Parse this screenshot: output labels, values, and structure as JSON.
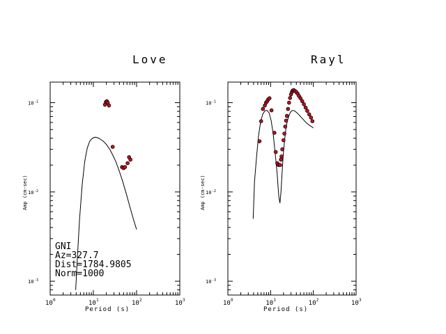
{
  "page": {
    "background": "#ffffff"
  },
  "chart_data": [
    {
      "type": "line",
      "title": "Love",
      "xlabel": "Period (s)",
      "ylabel": "Amp (cm-sec)",
      "xscale": "log",
      "yscale": "log",
      "xlim": [
        1,
        1000
      ],
      "ylim": [
        0.0007,
        0.17
      ],
      "x_tick_labels": [
        {
          "value": 1,
          "base": "10",
          "exp": "0"
        },
        {
          "value": 10,
          "base": "10",
          "exp": "1"
        },
        {
          "value": 100,
          "base": "10",
          "exp": "2"
        },
        {
          "value": 1000,
          "base": "10",
          "exp": "3"
        }
      ],
      "y_tick_labels": [
        {
          "value": 0.001,
          "base": "10",
          "exp": "-3"
        },
        {
          "value": 0.01,
          "base": "10",
          "exp": "-2"
        },
        {
          "value": 0.1,
          "base": "10",
          "exp": "-1"
        }
      ],
      "series": [
        {
          "kind": "line",
          "color": "#000000",
          "x": [
            3.9,
            4.3,
            4.8,
            5.5,
            6.3,
            7.2,
            8.2,
            9.5,
            11,
            12.5,
            14.5,
            17,
            20,
            24,
            28,
            33,
            40,
            48,
            58,
            70,
            85,
            100
          ],
          "y": [
            0.0008,
            0.002,
            0.005,
            0.012,
            0.022,
            0.031,
            0.037,
            0.04,
            0.041,
            0.0405,
            0.039,
            0.037,
            0.034,
            0.03,
            0.026,
            0.022,
            0.017,
            0.013,
            0.0095,
            0.0068,
            0.0049,
            0.0038
          ]
        },
        {
          "kind": "scatter",
          "color": "#c1121f",
          "x": [
            18.5,
            19.5,
            20.5,
            21.5,
            23,
            28,
            46,
            50,
            54,
            62,
            67,
            72
          ],
          "y": [
            0.095,
            0.102,
            0.104,
            0.1,
            0.093,
            0.032,
            0.019,
            0.0185,
            0.019,
            0.021,
            0.0245,
            0.023
          ]
        }
      ],
      "annotations": [
        "GNI",
        "Az=327.7",
        "Dist=1784.9805",
        "Norm=1000"
      ]
    },
    {
      "type": "line",
      "title": "Rayl",
      "xlabel": "Period (s)",
      "ylabel": "Amp (cm-sec)",
      "xscale": "log",
      "yscale": "log",
      "xlim": [
        1,
        1000
      ],
      "ylim": [
        0.0007,
        0.17
      ],
      "x_tick_labels": [
        {
          "value": 1,
          "base": "10",
          "exp": "0"
        },
        {
          "value": 10,
          "base": "10",
          "exp": "1"
        },
        {
          "value": 100,
          "base": "10",
          "exp": "2"
        },
        {
          "value": 1000,
          "base": "10",
          "exp": "3"
        }
      ],
      "y_tick_labels": [
        {
          "value": 0.001,
          "base": "10",
          "exp": "-3"
        },
        {
          "value": 0.01,
          "base": "10",
          "exp": "-2"
        },
        {
          "value": 0.1,
          "base": "10",
          "exp": "-1"
        }
      ],
      "series": [
        {
          "kind": "line",
          "color": "#000000",
          "x": [
            3.9,
            4.2,
            4.7,
            5.2,
            5.8,
            6.5,
            7.3,
            8.2,
            9.2,
            10.3,
            11.5,
            12.8,
            14.2,
            15.5,
            16.5,
            17.5,
            18.8,
            20,
            21.5,
            23,
            25,
            27,
            29,
            31,
            33,
            36,
            40,
            45,
            50,
            56,
            63,
            70,
            80,
            90,
            100
          ],
          "y": [
            0.005,
            0.013,
            0.025,
            0.042,
            0.06,
            0.074,
            0.081,
            0.082,
            0.077,
            0.063,
            0.044,
            0.027,
            0.016,
            0.009,
            0.0075,
            0.01,
            0.018,
            0.028,
            0.04,
            0.053,
            0.064,
            0.072,
            0.078,
            0.081,
            0.082,
            0.081,
            0.078,
            0.074,
            0.07,
            0.066,
            0.062,
            0.059,
            0.056,
            0.054,
            0.052
          ]
        },
        {
          "kind": "scatter",
          "color": "#c1121f",
          "x": [
            5.5,
            6.0,
            6.6,
            7.3,
            7.8,
            8.3,
            8.8,
            9.4,
            10.5,
            12.3,
            13.2,
            14.3,
            15.3,
            16.7,
            17.4,
            18,
            18.8,
            20,
            21,
            22,
            23,
            24,
            25.5,
            27,
            28.5,
            30,
            31.5,
            33,
            35,
            37.5,
            40,
            43,
            46,
            50,
            55,
            60,
            66,
            72,
            80,
            88,
            95
          ],
          "y": [
            0.037,
            0.062,
            0.085,
            0.093,
            0.1,
            0.104,
            0.109,
            0.112,
            0.082,
            0.046,
            0.028,
            0.021,
            0.02,
            0.02,
            0.023,
            0.025,
            0.03,
            0.038,
            0.045,
            0.054,
            0.063,
            0.071,
            0.085,
            0.1,
            0.113,
            0.124,
            0.132,
            0.137,
            0.138,
            0.135,
            0.131,
            0.126,
            0.119,
            0.112,
            0.104,
            0.096,
            0.088,
            0.081,
            0.074,
            0.068,
            0.062
          ]
        }
      ]
    }
  ]
}
